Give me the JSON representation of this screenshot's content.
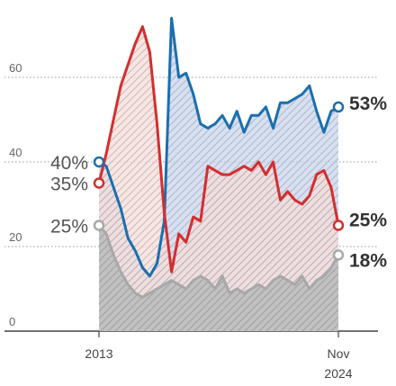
{
  "chart_data": {
    "type": "area",
    "title": "",
    "xlabel": "",
    "ylabel": "",
    "x_tick_labels": [
      "2013",
      "Nov",
      "2024"
    ],
    "y_ticks": [
      0,
      20,
      40,
      60
    ],
    "ylim": [
      0,
      75
    ],
    "grid": true,
    "colors": {
      "grid": "#999999",
      "axis": "#444444"
    },
    "series": [
      {
        "color": "#1a6faf",
        "fill": "#c9d6ee",
        "start_label": "40%",
        "end_label": "53%",
        "values": [
          40,
          39,
          34,
          29,
          22,
          19,
          15,
          13,
          16,
          26,
          74,
          60,
          61,
          56,
          49,
          48,
          49,
          51,
          48,
          52,
          47,
          51,
          51,
          53,
          48,
          54,
          54,
          55,
          56,
          58,
          52,
          47,
          52,
          53
        ]
      },
      {
        "color": "#d42e2e",
        "fill": "#f7ddd9",
        "start_label": "35%",
        "end_label": "25%",
        "values": [
          35,
          42,
          50,
          58,
          63,
          68,
          72,
          66,
          49,
          28,
          14,
          23,
          21,
          27,
          26,
          39,
          38,
          37,
          37,
          38,
          39,
          38,
          40,
          37,
          40,
          31,
          33,
          31,
          30,
          32,
          37,
          38,
          34,
          25
        ]
      },
      {
        "color": "#a8a8a8",
        "fill": "#bfbfbf",
        "start_label": "25%",
        "end_label": "18%",
        "values": [
          25,
          23,
          18,
          14,
          11,
          9,
          8,
          9,
          10,
          11,
          12,
          11,
          10,
          12,
          13,
          12,
          10,
          13,
          9,
          10,
          9,
          10,
          11,
          10,
          12,
          13,
          12,
          11,
          13,
          10,
          12,
          13,
          15,
          18
        ]
      }
    ]
  }
}
